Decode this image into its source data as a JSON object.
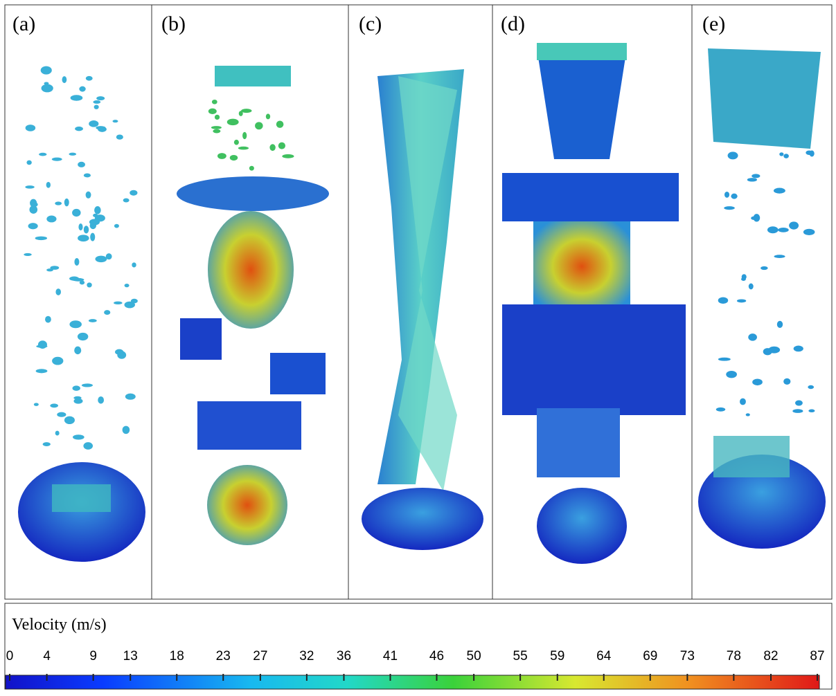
{
  "panels": [
    {
      "label": "(a)"
    },
    {
      "label": "(b)"
    },
    {
      "label": "(c)"
    },
    {
      "label": "(d)"
    },
    {
      "label": "(e)"
    }
  ],
  "colorbar": {
    "title": "Velocity (m/s)",
    "lim": [
      0,
      87
    ],
    "ticks": [
      0,
      4,
      9,
      13,
      18,
      23,
      27,
      32,
      36,
      41,
      46,
      50,
      55,
      59,
      64,
      69,
      73,
      78,
      82,
      87
    ]
  }
}
